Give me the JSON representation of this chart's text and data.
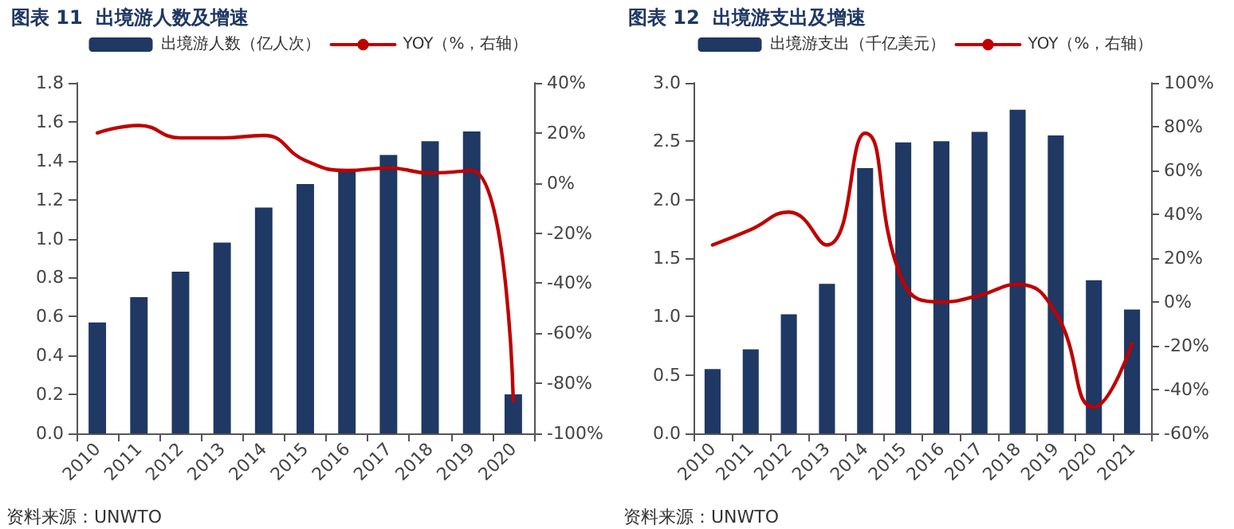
{
  "chart_data": [
    {
      "type": "bar",
      "title": "图表 11  出境游人数及增速",
      "annotations": [
        "资料来源：UNWTO"
      ],
      "categories": [
        "2010",
        "2011",
        "2012",
        "2013",
        "2014",
        "2015",
        "2016",
        "2017",
        "2018",
        "2019",
        "2020"
      ],
      "series": [
        {
          "name": "出境游人数（亿人次）",
          "color": "#1f3864",
          "values": [
            0.57,
            0.7,
            0.83,
            0.98,
            1.16,
            1.28,
            1.35,
            1.43,
            1.5,
            1.55,
            0.2
          ]
        },
        {
          "name": "YOY（%，右轴）",
          "type": "line",
          "axis": "y2",
          "color": "#c00000",
          "values": [
            20,
            23,
            18,
            18,
            19,
            9,
            5,
            6,
            4,
            5,
            -87
          ]
        }
      ],
      "ylim": [
        0,
        1.8
      ],
      "yticks": [
        {
          "value": 0,
          "label": "0.0"
        },
        {
          "value": 0.2,
          "label": "0.2"
        },
        {
          "value": 0.4,
          "label": "0.4"
        },
        {
          "value": 0.6,
          "label": "0.6"
        },
        {
          "value": 0.8,
          "label": "0.8"
        },
        {
          "value": 1.0,
          "label": "1.0"
        },
        {
          "value": 1.2,
          "label": "1.2"
        },
        {
          "value": 1.4,
          "label": "1.4"
        },
        {
          "value": 1.6,
          "label": "1.6"
        },
        {
          "value": 1.8,
          "label": "1.8"
        }
      ],
      "y2lim": [
        -100,
        40
      ],
      "y2ticks": [
        {
          "value": -100,
          "label": "-100%"
        },
        {
          "value": -80,
          "label": "-80%"
        },
        {
          "value": -60,
          "label": "-60%"
        },
        {
          "value": -40,
          "label": "-40%"
        },
        {
          "value": -20,
          "label": "-20%"
        },
        {
          "value": 0,
          "label": "0%"
        },
        {
          "value": 20,
          "label": "20%"
        },
        {
          "value": 40,
          "label": "40%"
        }
      ],
      "grid": false,
      "legend": "top",
      "marker": "none",
      "line_style": "solid"
    },
    {
      "type": "bar",
      "title": "图表 12  出境游支出及增速",
      "annotations": [
        "资料来源：UNWTO"
      ],
      "categories": [
        "2010",
        "2011",
        "2012",
        "2013",
        "2014",
        "2015",
        "2016",
        "2017",
        "2018",
        "2019",
        "2020",
        "2021"
      ],
      "series": [
        {
          "name": "出境游支出（千亿美元）",
          "color": "#1f3864",
          "values": [
            0.55,
            0.72,
            1.02,
            1.28,
            2.27,
            2.49,
            2.5,
            2.58,
            2.77,
            2.55,
            1.31,
            1.06
          ]
        },
        {
          "name": "YOY（%，右轴）",
          "type": "line",
          "axis": "y2",
          "color": "#c00000",
          "values": [
            26,
            33,
            41,
            26,
            77,
            9,
            0,
            3,
            8,
            -5,
            -48,
            -19
          ]
        }
      ],
      "ylim": [
        0,
        3.0
      ],
      "yticks": [
        {
          "value": 0,
          "label": "0.0"
        },
        {
          "value": 0.5,
          "label": "0.5"
        },
        {
          "value": 1.0,
          "label": "1.0"
        },
        {
          "value": 1.5,
          "label": "1.5"
        },
        {
          "value": 2.0,
          "label": "2.0"
        },
        {
          "value": 2.5,
          "label": "2.5"
        },
        {
          "value": 3.0,
          "label": "3.0"
        }
      ],
      "y2lim": [
        -60,
        100
      ],
      "y2ticks": [
        {
          "value": -60,
          "label": "-60%"
        },
        {
          "value": -40,
          "label": "-40%"
        },
        {
          "value": -20,
          "label": "-20%"
        },
        {
          "value": 0,
          "label": "0%"
        },
        {
          "value": 20,
          "label": "20%"
        },
        {
          "value": 40,
          "label": "40%"
        },
        {
          "value": 60,
          "label": "60%"
        },
        {
          "value": 80,
          "label": "80%"
        },
        {
          "value": 100,
          "label": "100%"
        }
      ],
      "grid": false,
      "legend": "top",
      "marker": "none",
      "line_style": "solid"
    }
  ]
}
